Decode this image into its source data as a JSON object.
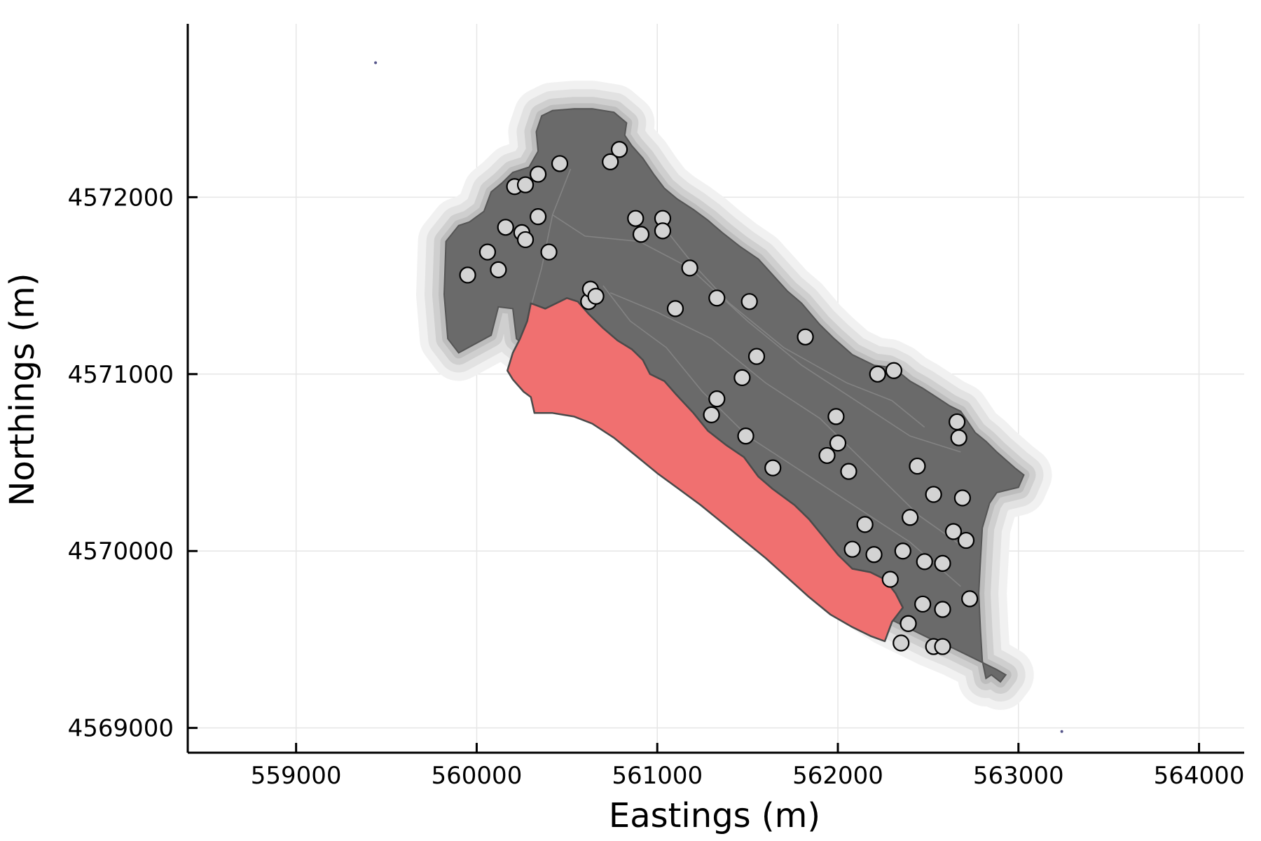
{
  "chart_data": {
    "type": "scatter",
    "title": "",
    "xlabel": "Eastings (m)",
    "ylabel": "Northings (m)",
    "xlim": [
      558400,
      564250
    ],
    "ylim": [
      4568860,
      4572980
    ],
    "xticks": [
      559000,
      560000,
      561000,
      562000,
      563000,
      564000
    ],
    "xtick_labels": [
      "559000",
      "560000",
      "561000",
      "562000",
      "563000",
      "564000"
    ],
    "yticks": [
      4569000,
      4570000,
      4571000,
      4572000
    ],
    "ytick_labels": [
      "4569000",
      "4570000",
      "4571000",
      "4572000"
    ],
    "grid": true,
    "legend": "none",
    "colors": {
      "catchment_fill": "#6a6a6a",
      "buffer_fill": "#c8c8c8",
      "highlight_fill": "#f07070",
      "point_fill": "#d3d3d3",
      "point_edge": "#000000",
      "grid": "#e6e6e6"
    },
    "catchment_outline": [
      [
        559840,
        4571200
      ],
      [
        559900,
        4571120
      ],
      [
        560080,
        4571220
      ],
      [
        560120,
        4571380
      ],
      [
        560200,
        4571370
      ],
      [
        560220,
        4571200
      ],
      [
        560320,
        4571120
      ],
      [
        560320,
        4571070
      ],
      [
        560440,
        4571060
      ],
      [
        560550,
        4571020
      ],
      [
        560660,
        4570940
      ],
      [
        560780,
        4570830
      ],
      [
        560900,
        4570730
      ],
      [
        561020,
        4570640
      ],
      [
        561140,
        4570560
      ],
      [
        561260,
        4570480
      ],
      [
        561380,
        4570380
      ],
      [
        561500,
        4570280
      ],
      [
        561640,
        4570170
      ],
      [
        561760,
        4570060
      ],
      [
        561880,
        4569940
      ],
      [
        562000,
        4569820
      ],
      [
        562100,
        4569740
      ],
      [
        562200,
        4569670
      ],
      [
        562280,
        4569620
      ],
      [
        562400,
        4569560
      ],
      [
        562520,
        4569500
      ],
      [
        562640,
        4569450
      ],
      [
        562760,
        4569390
      ],
      [
        562880,
        4569330
      ],
      [
        562930,
        4569300
      ],
      [
        562900,
        4569260
      ],
      [
        562850,
        4569300
      ],
      [
        562820,
        4569280
      ],
      [
        562800,
        4569380
      ],
      [
        562790,
        4569550
      ],
      [
        562780,
        4569760
      ],
      [
        562790,
        4569950
      ],
      [
        562800,
        4570130
      ],
      [
        562840,
        4570270
      ],
      [
        562880,
        4570330
      ],
      [
        563000,
        4570360
      ],
      [
        563030,
        4570430
      ],
      [
        562980,
        4570470
      ],
      [
        562880,
        4570560
      ],
      [
        562820,
        4570620
      ],
      [
        562760,
        4570670
      ],
      [
        562680,
        4570790
      ],
      [
        562620,
        4570820
      ],
      [
        562560,
        4570860
      ],
      [
        562470,
        4570920
      ],
      [
        562400,
        4570960
      ],
      [
        562340,
        4571010
      ],
      [
        562280,
        4571040
      ],
      [
        562200,
        4571050
      ],
      [
        562080,
        4571110
      ],
      [
        561980,
        4571200
      ],
      [
        561900,
        4571280
      ],
      [
        561800,
        4571400
      ],
      [
        561720,
        4571470
      ],
      [
        561640,
        4571560
      ],
      [
        561560,
        4571650
      ],
      [
        561460,
        4571720
      ],
      [
        561360,
        4571800
      ],
      [
        561280,
        4571870
      ],
      [
        561200,
        4571930
      ],
      [
        561110,
        4571990
      ],
      [
        561040,
        4572050
      ],
      [
        560980,
        4572130
      ],
      [
        560920,
        4572220
      ],
      [
        560860,
        4572290
      ],
      [
        560820,
        4572350
      ],
      [
        560830,
        4572420
      ],
      [
        560760,
        4572480
      ],
      [
        560640,
        4572500
      ],
      [
        560540,
        4572500
      ],
      [
        560420,
        4572490
      ],
      [
        560360,
        4572460
      ],
      [
        560330,
        4572370
      ],
      [
        560340,
        4572260
      ],
      [
        560290,
        4572170
      ],
      [
        560200,
        4572140
      ],
      [
        560140,
        4572080
      ],
      [
        560080,
        4572030
      ],
      [
        560040,
        4571920
      ],
      [
        559960,
        4571860
      ],
      [
        559900,
        4571840
      ],
      [
        559830,
        4571750
      ],
      [
        559820,
        4571450
      ]
    ],
    "highlight_zone_outline": [
      [
        560300,
        4571400
      ],
      [
        560380,
        4571370
      ],
      [
        560500,
        4571430
      ],
      [
        560560,
        4571410
      ],
      [
        560620,
        4571340
      ],
      [
        560700,
        4571260
      ],
      [
        560780,
        4571190
      ],
      [
        560860,
        4571140
      ],
      [
        560920,
        4571080
      ],
      [
        560960,
        4571000
      ],
      [
        561040,
        4570960
      ],
      [
        561100,
        4570890
      ],
      [
        561200,
        4570780
      ],
      [
        561280,
        4570680
      ],
      [
        561380,
        4570600
      ],
      [
        561480,
        4570530
      ],
      [
        561560,
        4570420
      ],
      [
        561640,
        4570350
      ],
      [
        561760,
        4570260
      ],
      [
        561840,
        4570180
      ],
      [
        561920,
        4570080
      ],
      [
        562000,
        4569980
      ],
      [
        562080,
        4569900
      ],
      [
        562180,
        4569880
      ],
      [
        562260,
        4569840
      ],
      [
        562320,
        4569760
      ],
      [
        562360,
        4569680
      ],
      [
        562300,
        4569600
      ],
      [
        562260,
        4569490
      ],
      [
        562180,
        4569520
      ],
      [
        562080,
        4569570
      ],
      [
        561960,
        4569640
      ],
      [
        561840,
        4569740
      ],
      [
        561720,
        4569850
      ],
      [
        561600,
        4569960
      ],
      [
        561480,
        4570060
      ],
      [
        561360,
        4570160
      ],
      [
        561240,
        4570260
      ],
      [
        561120,
        4570350
      ],
      [
        561000,
        4570440
      ],
      [
        560880,
        4570540
      ],
      [
        560760,
        4570640
      ],
      [
        560640,
        4570720
      ],
      [
        560540,
        4570760
      ],
      [
        560480,
        4570770
      ],
      [
        560420,
        4570780
      ],
      [
        560320,
        4570780
      ],
      [
        560300,
        4570870
      ],
      [
        560260,
        4570900
      ],
      [
        560200,
        4570970
      ],
      [
        560170,
        4571020
      ],
      [
        560200,
        4571120
      ],
      [
        560240,
        4571200
      ],
      [
        560280,
        4571300
      ]
    ],
    "points": [
      [
        559950,
        4571560
      ],
      [
        560060,
        4571690
      ],
      [
        560120,
        4571590
      ],
      [
        560160,
        4571830
      ],
      [
        560210,
        4572060
      ],
      [
        560250,
        4571800
      ],
      [
        560270,
        4571760
      ],
      [
        560270,
        4572070
      ],
      [
        560340,
        4572130
      ],
      [
        560340,
        4571890
      ],
      [
        560400,
        4571690
      ],
      [
        560460,
        4572190
      ],
      [
        560620,
        4571410
      ],
      [
        560630,
        4571480
      ],
      [
        560660,
        4571440
      ],
      [
        560740,
        4572200
      ],
      [
        560790,
        4572270
      ],
      [
        560880,
        4571880
      ],
      [
        560910,
        4571790
      ],
      [
        561030,
        4571880
      ],
      [
        561030,
        4571810
      ],
      [
        561100,
        4571370
      ],
      [
        561180,
        4571600
      ],
      [
        561300,
        4570770
      ],
      [
        561330,
        4570860
      ],
      [
        561330,
        4571430
      ],
      [
        561470,
        4570980
      ],
      [
        561490,
        4570650
      ],
      [
        561510,
        4571410
      ],
      [
        561550,
        4571100
      ],
      [
        561640,
        4570470
      ],
      [
        561820,
        4571210
      ],
      [
        561940,
        4570540
      ],
      [
        561990,
        4570760
      ],
      [
        562000,
        4570610
      ],
      [
        562060,
        4570450
      ],
      [
        562080,
        4570010
      ],
      [
        562150,
        4570150
      ],
      [
        562200,
        4569980
      ],
      [
        562220,
        4571000
      ],
      [
        562290,
        4569840
      ],
      [
        562310,
        4571020
      ],
      [
        562350,
        4569480
      ],
      [
        562360,
        4570000
      ],
      [
        562390,
        4569590
      ],
      [
        562400,
        4570190
      ],
      [
        562440,
        4570480
      ],
      [
        562470,
        4569700
      ],
      [
        562480,
        4569940
      ],
      [
        562530,
        4569460
      ],
      [
        562530,
        4570320
      ],
      [
        562580,
        4569460
      ],
      [
        562580,
        4569670
      ],
      [
        562580,
        4569930
      ],
      [
        562640,
        4570110
      ],
      [
        562660,
        4570730
      ],
      [
        562670,
        4570640
      ],
      [
        562690,
        4570300
      ],
      [
        562710,
        4570060
      ],
      [
        562730,
        4569730
      ]
    ],
    "stray_marks": [
      [
        559440,
        4572760
      ],
      [
        563240,
        4568980
      ]
    ]
  }
}
